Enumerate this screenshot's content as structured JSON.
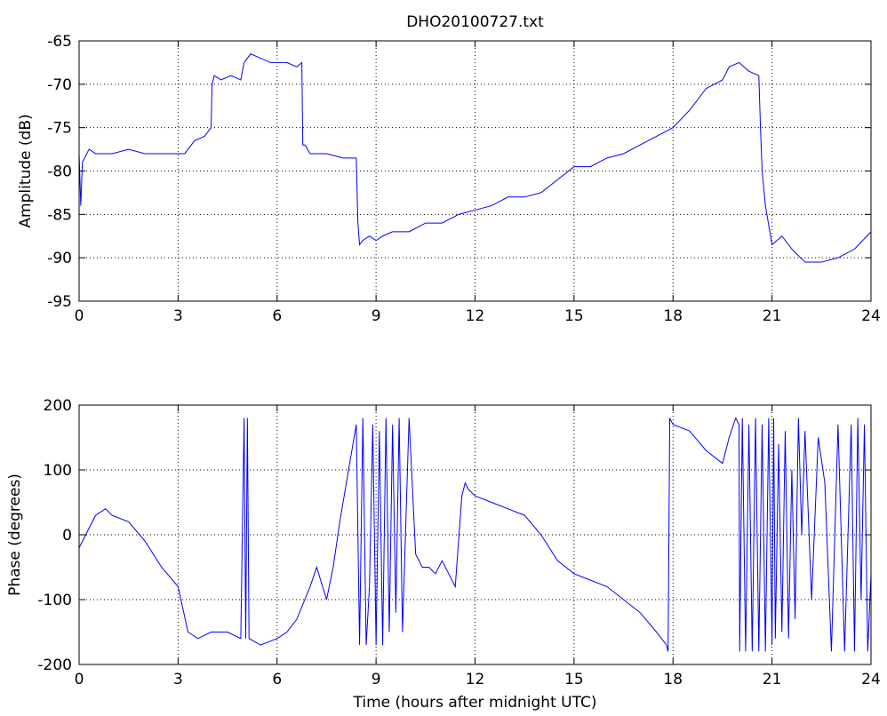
{
  "chart_data": [
    {
      "type": "line",
      "title": "DHO20100727.txt",
      "xlabel": "",
      "ylabel": "Amplitude (dB)",
      "xlim": [
        0,
        24
      ],
      "ylim": [
        -95,
        -65
      ],
      "xticks": [
        0,
        3,
        6,
        9,
        12,
        15,
        18,
        21,
        24
      ],
      "yticks": [
        -65,
        -70,
        -75,
        -80,
        -85,
        -90,
        -95
      ],
      "grid": true,
      "color": "#0000ff",
      "series": [
        {
          "x": [
            0,
            0.05,
            0.1,
            0.3,
            0.5,
            1,
            1.5,
            2,
            2.5,
            3,
            3.2,
            3.5,
            3.8,
            4,
            4.03,
            4.1,
            4.3,
            4.6,
            4.9,
            5,
            5.2,
            5.5,
            5.8,
            6,
            6.3,
            6.6,
            6.75,
            6.78,
            6.85,
            7,
            7.5,
            8,
            8.4,
            8.45,
            8.5,
            8.6,
            8.8,
            9,
            9.2,
            9.5,
            10,
            10.5,
            11,
            11.5,
            12,
            12.5,
            13,
            13.5,
            14,
            14.5,
            15,
            15.5,
            16,
            16.5,
            17,
            17.5,
            18,
            18.5,
            19,
            19.5,
            19.7,
            20,
            20.3,
            20.6,
            20.65,
            20.7,
            20.8,
            21,
            21.3,
            21.6,
            22,
            22.5,
            23,
            23.5,
            24
          ],
          "y": [
            -78,
            -84,
            -79,
            -77.5,
            -78,
            -78,
            -77.5,
            -78,
            -78,
            -78,
            -78,
            -76.5,
            -76,
            -75,
            -70,
            -69,
            -69.5,
            -69,
            -69.5,
            -67.5,
            -66.5,
            -67,
            -67.5,
            -67.5,
            -67.5,
            -68,
            -67.5,
            -77,
            -77,
            -78,
            -78,
            -78.5,
            -78.5,
            -86,
            -88.5,
            -88,
            -87.5,
            -88,
            -87.5,
            -87,
            -87,
            -86,
            -86,
            -85,
            -84.5,
            -84,
            -83,
            -83,
            -82.5,
            -81,
            -79.5,
            -79.5,
            -78.5,
            -78,
            -77,
            -76,
            -75,
            -73,
            -70.5,
            -69.5,
            -68,
            -67.5,
            -68.5,
            -69,
            -75,
            -80,
            -84,
            -88.5,
            -87.5,
            -89,
            -90.5,
            -90.5,
            -90,
            -89,
            -87
          ]
        }
      ]
    },
    {
      "type": "line",
      "title": "",
      "xlabel": "Time (hours after midnight UTC)",
      "ylabel": "Phase (degrees)",
      "xlim": [
        0,
        24
      ],
      "ylim": [
        -200,
        200
      ],
      "xticks": [
        0,
        3,
        6,
        9,
        12,
        15,
        18,
        21,
        24
      ],
      "yticks": [
        200,
        100,
        0,
        -100,
        -200
      ],
      "grid": true,
      "color": "#0000ff",
      "series": [
        {
          "x": [
            0,
            0.2,
            0.5,
            0.8,
            1,
            1.5,
            2,
            2.5,
            3,
            3.3,
            3.6,
            4,
            4.5,
            4.9,
            5,
            5.05,
            5.1,
            5.15,
            5.5,
            6,
            6.3,
            6.6,
            7,
            7.2,
            7.5,
            7.7,
            7.9,
            8.1,
            8.2,
            8.4,
            8.5,
            8.6,
            8.7,
            8.8,
            8.9,
            9,
            9.1,
            9.2,
            9.3,
            9.4,
            9.5,
            9.6,
            9.7,
            9.8,
            10,
            10.2,
            10.4,
            10.6,
            10.8,
            11,
            11.2,
            11.4,
            11.6,
            11.7,
            11.8,
            12,
            12.5,
            13,
            13.5,
            14,
            14.5,
            15,
            15.5,
            16,
            16.5,
            17,
            17.5,
            17.8,
            17.85,
            17.9,
            18,
            18.5,
            19,
            19.5,
            19.7,
            19.9,
            20,
            20.02,
            20.1,
            20.2,
            20.3,
            20.4,
            20.5,
            20.6,
            20.7,
            20.8,
            20.9,
            21,
            21.05,
            21.1,
            21.2,
            21.3,
            21.4,
            21.5,
            21.6,
            21.7,
            21.8,
            21.9,
            22,
            22.2,
            22.4,
            22.6,
            22.8,
            23,
            23.2,
            23.4,
            23.5,
            23.6,
            23.7,
            23.8,
            23.9,
            24
          ],
          "y": [
            -20,
            0,
            30,
            40,
            30,
            20,
            -10,
            -50,
            -80,
            -150,
            -160,
            -150,
            -150,
            -160,
            180,
            -160,
            180,
            -160,
            -170,
            -160,
            -150,
            -130,
            -80,
            -50,
            -100,
            -50,
            20,
            80,
            110,
            170,
            -170,
            180,
            -170,
            -80,
            170,
            -170,
            160,
            -170,
            180,
            -150,
            170,
            -120,
            180,
            -150,
            180,
            -30,
            -50,
            -50,
            -60,
            -40,
            -60,
            -80,
            60,
            80,
            70,
            60,
            50,
            40,
            30,
            0,
            -40,
            -60,
            -70,
            -80,
            -100,
            -120,
            -150,
            -170,
            -180,
            180,
            170,
            160,
            130,
            110,
            150,
            180,
            170,
            -180,
            180,
            -180,
            170,
            -180,
            180,
            -180,
            170,
            -180,
            180,
            -170,
            180,
            -160,
            140,
            -150,
            160,
            -160,
            100,
            -130,
            180,
            0,
            160,
            -100,
            150,
            80,
            -180,
            170,
            -180,
            170,
            -180,
            180,
            -100,
            170,
            -180,
            -60
          ]
        }
      ]
    }
  ]
}
